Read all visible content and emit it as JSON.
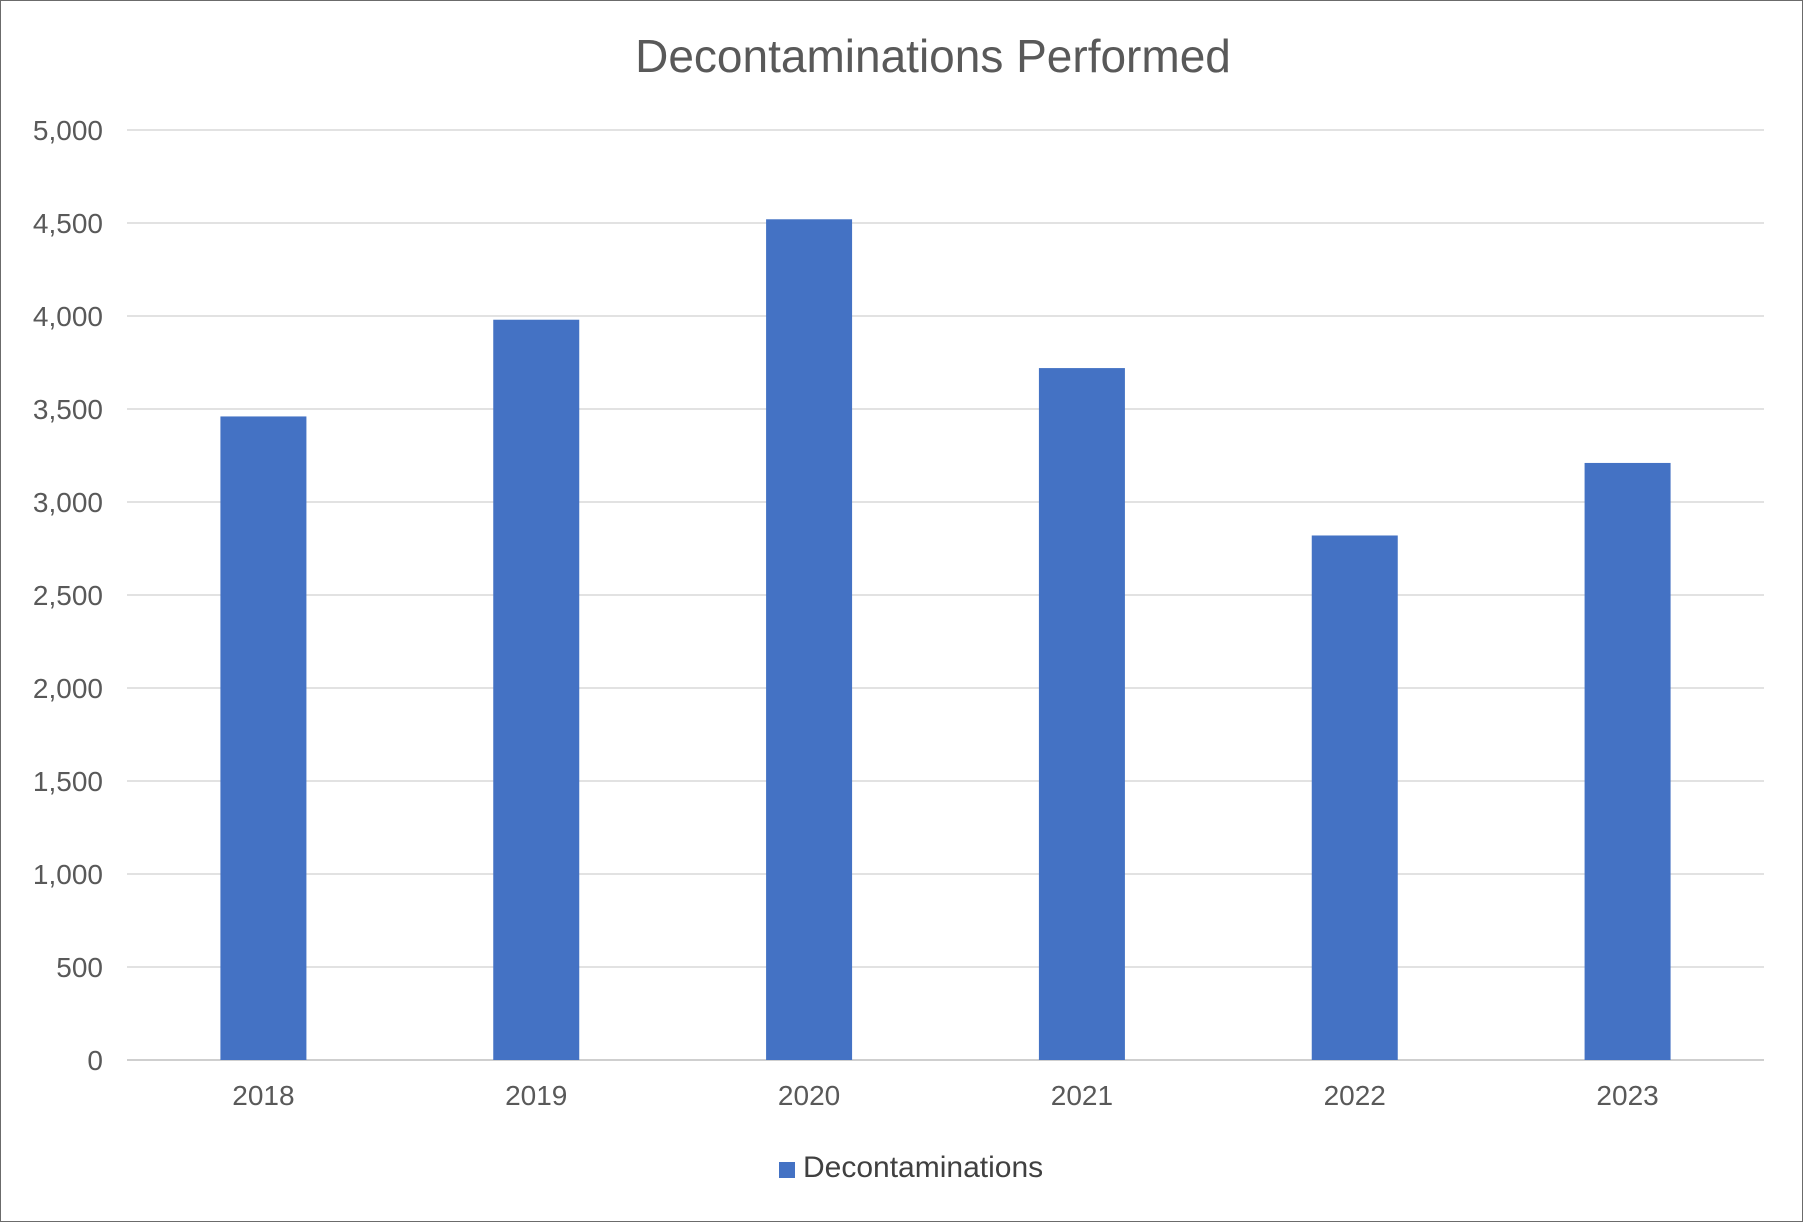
{
  "chart_data": {
    "type": "bar",
    "title": "Decontaminations Performed",
    "categories": [
      "2018",
      "2019",
      "2020",
      "2021",
      "2022",
      "2023"
    ],
    "series": [
      {
        "name": "Decontaminations",
        "values": [
          3460,
          3980,
          4520,
          3720,
          2820,
          3210
        ],
        "color": "#4472C4"
      }
    ],
    "ylim": [
      0,
      5000
    ],
    "yticks": [
      0,
      500,
      1000,
      1500,
      2000,
      2500,
      3000,
      3500,
      4000,
      4500,
      5000
    ],
    "ytick_labels": [
      "0",
      "500",
      "1,000",
      "1,500",
      "2,000",
      "2,500",
      "3,000",
      "3,500",
      "4,000",
      "4,500",
      "5,000"
    ],
    "grid": true,
    "legend_position": "bottom"
  }
}
